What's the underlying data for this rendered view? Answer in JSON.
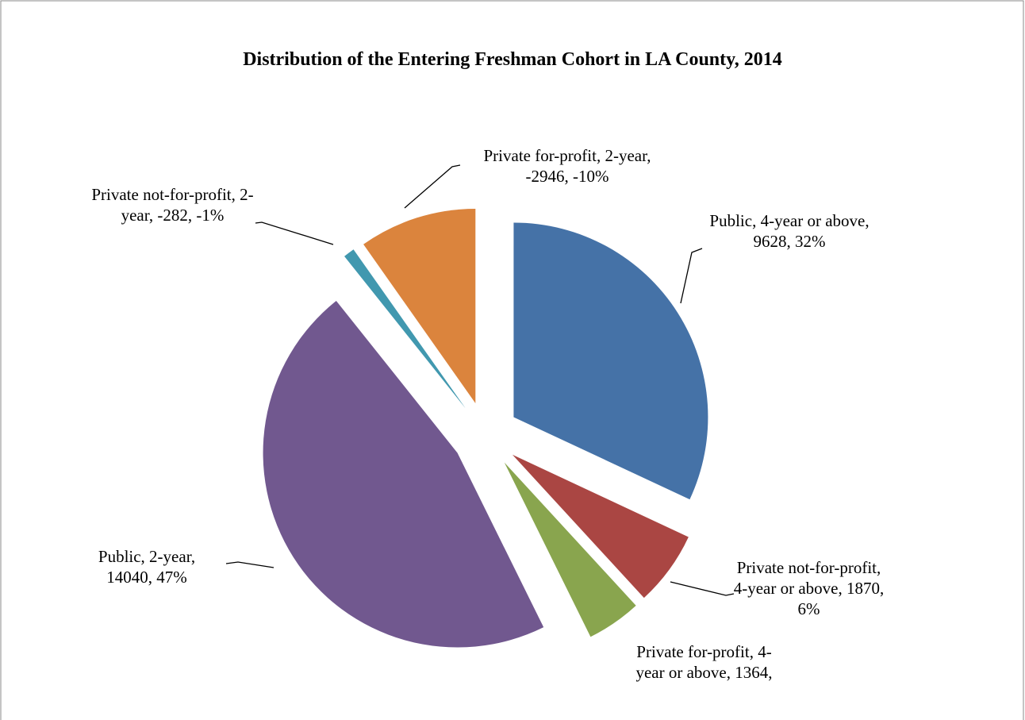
{
  "chart_data": {
    "type": "pie",
    "title": "Distribution of the Entering Freshman Cohort in LA County, 2014",
    "values": [
      9628,
      1870,
      1364,
      14040,
      -282,
      -2946
    ],
    "value_labels": [
      "Public, 4-year or above, 9628, 32%",
      "Private not-for-profit, 4-year or above, 1870, 6%",
      "Private for-profit, 4-year or above, 1364,",
      "Public, 2-year, 14040, 47%",
      "Private not-for-profit, 2-year, -282, -1%",
      "Private for-profit, 2-year, -2946, -10%"
    ],
    "colors": [
      "#4572a7",
      "#aa4643",
      "#89a54e",
      "#71588f",
      "#4198af",
      "#db843d"
    ]
  }
}
